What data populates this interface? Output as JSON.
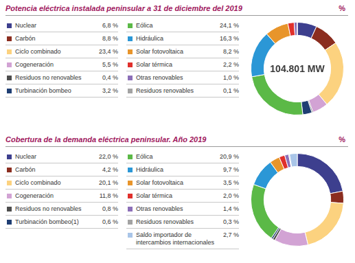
{
  "chart_data": [
    {
      "type": "doughnut",
      "title": "Potencia eléctrica instalada peninsular a 31 de diciembre del 2019",
      "subtitle": "%",
      "annotations": [
        "104.801 MW"
      ],
      "categories": [
        "Nuclear",
        "Carbón",
        "Ciclo combinado",
        "Cogeneración",
        "Residuos no renovables",
        "Turbinación bombeo",
        "Eólica",
        "Hidráulica",
        "Solar fotovoltaica",
        "Solar térmica",
        "Otras renovables",
        "Residuos renovables"
      ],
      "values": [
        6.8,
        8.8,
        23.4,
        5.5,
        0.4,
        3.2,
        24.1,
        16.3,
        8.2,
        2.2,
        1.0,
        0.1
      ],
      "value_labels": [
        "6,8 %",
        "8,8 %",
        "23,4 %",
        "5,5 %",
        "0,4 %",
        "3,2 %",
        "24,1 %",
        "16,3 %",
        "8,2 %",
        "2,2 %",
        "1,0 %",
        "0,1 %"
      ],
      "colors": [
        "#3d3f8e",
        "#8b2d1f",
        "#fcd27f",
        "#d2a3d4",
        "#4d4d4d",
        "#1f3e73",
        "#5bb947",
        "#2b97d6",
        "#e8952b",
        "#e0302c",
        "#8c6fb8",
        "#a3a3a3"
      ],
      "legend": "left"
    },
    {
      "type": "doughnut",
      "title": "Cobertura de la demanda eléctrica peninsular. Año 2019",
      "subtitle": "%",
      "categories": [
        "Nuclear",
        "Carbón",
        "Ciclo combinado",
        "Cogeneración",
        "Residuos no renovables",
        "Turbinación bombeo(1)",
        "Eólica",
        "Hidráulica",
        "Solar fotovoltaica",
        "Solar térmica",
        "Otras renovables",
        "Residuos renovables",
        "Saldo importador de intercambios internacionales"
      ],
      "values": [
        22.0,
        4.2,
        20.1,
        11.8,
        0.8,
        0.6,
        20.9,
        9.7,
        3.5,
        2.0,
        1.4,
        0.3,
        2.7
      ],
      "value_labels": [
        "22,0 %",
        "4,2 %",
        "20,1 %",
        "11,8 %",
        "0,8 %",
        "0,6 %",
        "20,9 %",
        "9,7 %",
        "3,5 %",
        "2,0 %",
        "1,4 %",
        "0,3 %",
        "2,7 %"
      ],
      "colors": [
        "#3d3f8e",
        "#8b2d1f",
        "#fcd27f",
        "#d2a3d4",
        "#4d4d4d",
        "#1f3e73",
        "#5bb947",
        "#2b97d6",
        "#e8952b",
        "#e0302c",
        "#8c6fb8",
        "#a3a3a3",
        "#a9c5e8"
      ],
      "legend": "left"
    }
  ]
}
